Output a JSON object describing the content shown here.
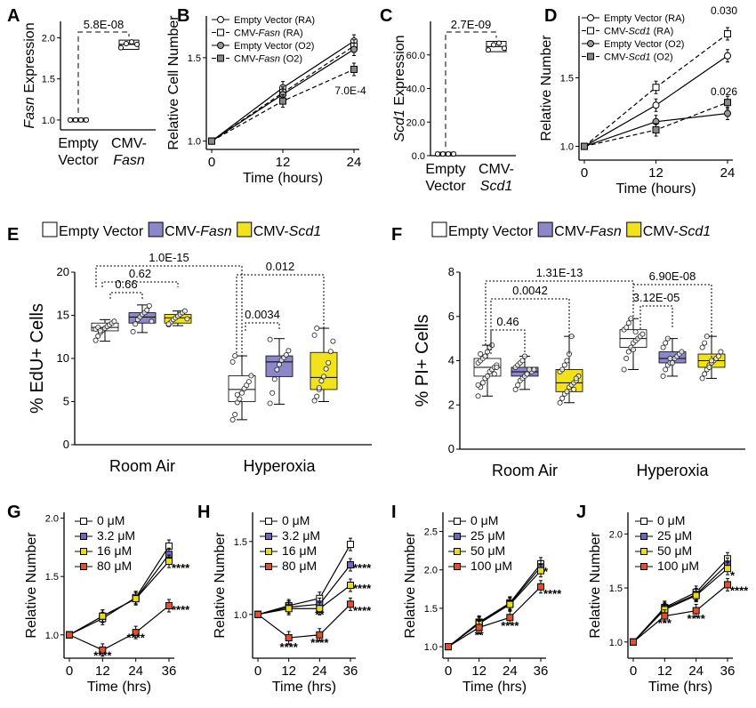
{
  "colors": {
    "empty": "#ffffff",
    "fasn": "#8b87c9",
    "scd1": "#f2e21a",
    "red": "#e2502d",
    "gray": "#888888",
    "line": "#000000"
  },
  "chart_data": [
    {
      "panel": "A",
      "type": "scatter",
      "ylabel_italic": "Fasn",
      "ylabel_rest": " Expression",
      "categories": [
        [
          "Empty",
          "Vector"
        ],
        [
          "CMV-",
          "Fasn"
        ]
      ],
      "yticks": [
        "1.0",
        "1.5",
        "2.0"
      ],
      "ylim": [
        0.88,
        2.2
      ],
      "groups": [
        {
          "name": "Empty Vector",
          "values": [
            1.0,
            1.0,
            1.0,
            1.0
          ]
        },
        {
          "name": "CMV-Fasn",
          "values": [
            1.88,
            1.93,
            1.95,
            1.92
          ]
        }
      ],
      "pvalue": "5.8E-08"
    },
    {
      "panel": "B",
      "type": "line",
      "xlabel": "Time (hours)",
      "ylabel": "Relative Cell Number",
      "x": [
        0,
        12,
        24
      ],
      "xticks": [
        "0",
        "12",
        "24"
      ],
      "yticks": [
        "1.0",
        "1.5"
      ],
      "ylim": [
        0.95,
        1.75
      ],
      "series": [
        {
          "name": "Empty Vector (RA)",
          "values": [
            1.0,
            1.32,
            1.6
          ]
        },
        {
          "name": "CMV-",
          "name_italic": "Fasn",
          "name_rest": " (RA)",
          "values": [
            1.0,
            1.29,
            1.57
          ]
        },
        {
          "name": "Empty Vector (O2)",
          "values": [
            1.0,
            1.28,
            1.55
          ]
        },
        {
          "name": "CMV-",
          "name_italic": "Fasn",
          "name_rest": " (O2)",
          "values": [
            1.0,
            1.24,
            1.43
          ]
        }
      ],
      "annotation": "7.0E-4"
    },
    {
      "panel": "C",
      "type": "scatter",
      "ylabel_italic": "Scd1",
      "ylabel_rest": " Expression",
      "categories": [
        [
          "Empty",
          "Vector"
        ],
        [
          "CMV-",
          "Scd1"
        ]
      ],
      "yticks": [
        "0.0",
        "20.0",
        "40.0",
        "60.0"
      ],
      "ylim": [
        0,
        80
      ],
      "groups": [
        {
          "name": "Empty Vector",
          "values": [
            1.0,
            1.0,
            1.0,
            1.0
          ]
        },
        {
          "name": "CMV-Scd1",
          "values": [
            63,
            66,
            67,
            64
          ]
        }
      ],
      "pvalue": "2.7E-09"
    },
    {
      "panel": "D",
      "type": "line",
      "xlabel": "Time (hours)",
      "ylabel": "Relative Number",
      "x": [
        0,
        12,
        24
      ],
      "xticks": [
        "0",
        "12",
        "24"
      ],
      "yticks": [
        "1.0",
        "1.5"
      ],
      "ylim": [
        0.9,
        1.95
      ],
      "series": [
        {
          "name": "Empty Vector (RA)",
          "values": [
            1.0,
            1.3,
            1.66
          ]
        },
        {
          "name": "CMV-",
          "name_italic": "Scd1",
          "name_rest": " (RA)",
          "values": [
            1.0,
            1.43,
            1.82
          ]
        },
        {
          "name": "Empty Vector (O2)",
          "values": [
            1.0,
            1.18,
            1.24
          ]
        },
        {
          "name": "CMV-",
          "name_italic": "Scd1",
          "name_rest": " (O2)",
          "values": [
            1.0,
            1.12,
            1.32
          ]
        }
      ],
      "annotations": [
        "0.030",
        "0.026"
      ]
    },
    {
      "panel": "E",
      "type": "box",
      "ylabel": "% EdU+ Cells",
      "legend": [
        {
          "label": "Empty Vector"
        },
        {
          "label": "CMV-",
          "italic": "Fasn"
        },
        {
          "label": "CMV-",
          "italic": "Scd1"
        }
      ],
      "groups": [
        "Room Air",
        "Hyperoxia"
      ],
      "yticks": [
        "0",
        "5",
        "10",
        "15",
        "20"
      ],
      "ylim": [
        0,
        20
      ],
      "boxes": [
        {
          "q1": 13.2,
          "median": 13.6,
          "q3": 14.1,
          "lo": 12.0,
          "hi": 14.5,
          "points": [
            12.1,
            12.6,
            13.0,
            13.3,
            13.5,
            13.7,
            13.9,
            14.1,
            14.3,
            13.4,
            13.6,
            13.2
          ]
        },
        {
          "q1": 14.1,
          "median": 14.8,
          "q3": 15.3,
          "lo": 13.0,
          "hi": 16.2,
          "points": [
            13.1,
            14.0,
            14.5,
            14.8,
            15.1,
            15.3,
            15.6,
            16.1,
            14.3
          ]
        },
        {
          "q1": 14.1,
          "median": 14.7,
          "q3": 15.1,
          "lo": 13.8,
          "hi": 15.5,
          "points": [
            13.9,
            14.2,
            14.5,
            14.7,
            14.9,
            15.1,
            15.3,
            15.5,
            14.6,
            14.0
          ]
        },
        {
          "q1": 5.0,
          "median": 6.4,
          "q3": 8.0,
          "lo": 2.9,
          "hi": 10.3,
          "points": [
            2.9,
            3.5,
            4.9,
            5.3,
            6.0,
            6.5,
            6.9,
            7.3,
            8.0,
            9.6,
            10.3,
            5.8
          ]
        },
        {
          "q1": 7.9,
          "median": 9.6,
          "q3": 10.3,
          "lo": 4.7,
          "hi": 12.3,
          "points": [
            4.8,
            6.0,
            7.6,
            8.7,
            9.3,
            9.8,
            10.1,
            10.4,
            10.9,
            12.2
          ]
        },
        {
          "q1": 6.4,
          "median": 7.8,
          "q3": 10.7,
          "lo": 5.0,
          "hi": 13.5,
          "points": [
            5.1,
            5.6,
            6.4,
            7.4,
            7.9,
            8.8,
            9.5,
            10.8,
            12.0,
            12.7,
            13.5,
            6.6
          ]
        }
      ],
      "pvalues": [
        "1.0E-15",
        "0.62",
        "0.66",
        "0.012",
        "0.0034"
      ]
    },
    {
      "panel": "F",
      "type": "box",
      "ylabel": "% PI+ Cells",
      "legend": [
        {
          "label": "Empty Vector"
        },
        {
          "label": "CMV-",
          "italic": "Fasn"
        },
        {
          "label": "CMV-",
          "italic": "Scd1"
        }
      ],
      "groups": [
        "Room Air",
        "Hyperoxia"
      ],
      "yticks": [
        "0",
        "2",
        "4",
        "6",
        "8"
      ],
      "ylim": [
        0,
        8
      ],
      "boxes": [
        {
          "q1": 3.3,
          "median": 3.7,
          "q3": 4.1,
          "lo": 2.4,
          "hi": 4.7,
          "points": [
            2.4,
            2.8,
            3.0,
            3.2,
            3.3,
            3.5,
            3.6,
            3.7,
            3.8,
            3.9,
            4.0,
            4.1,
            4.2,
            4.4,
            4.6,
            4.7,
            3.4,
            3.7,
            2.9,
            4.3
          ]
        },
        {
          "q1": 3.3,
          "median": 3.5,
          "q3": 3.7,
          "lo": 2.7,
          "hi": 4.2,
          "points": [
            2.7,
            2.9,
            3.1,
            3.2,
            3.3,
            3.4,
            3.5,
            3.5,
            3.6,
            3.7,
            3.8,
            3.9,
            4.0,
            4.2,
            3.4,
            3.6
          ]
        },
        {
          "q1": 2.6,
          "median": 3.0,
          "q3": 3.6,
          "lo": 2.1,
          "hi": 5.1,
          "points": [
            2.1,
            2.3,
            2.5,
            2.6,
            2.8,
            2.9,
            3.0,
            3.1,
            3.3,
            3.5,
            3.6,
            3.8,
            4.0,
            4.3,
            5.1,
            2.7,
            3.2
          ]
        },
        {
          "q1": 4.6,
          "median": 5.0,
          "q3": 5.4,
          "lo": 3.6,
          "hi": 5.9,
          "points": [
            3.6,
            4.1,
            4.4,
            4.6,
            4.8,
            4.9,
            5.0,
            5.1,
            5.2,
            5.4,
            5.5,
            5.7,
            5.9,
            4.5,
            5.3
          ]
        },
        {
          "q1": 3.9,
          "median": 4.1,
          "q3": 4.4,
          "lo": 3.3,
          "hi": 5.0,
          "points": [
            3.3,
            3.6,
            3.8,
            3.9,
            4.0,
            4.1,
            4.2,
            4.3,
            4.4,
            4.6,
            4.8,
            5.0,
            4.1,
            3.9
          ]
        },
        {
          "q1": 3.7,
          "median": 4.0,
          "q3": 4.3,
          "lo": 3.2,
          "hi": 5.1,
          "points": [
            3.2,
            3.4,
            3.6,
            3.8,
            3.9,
            4.0,
            4.1,
            4.2,
            4.4,
            4.6,
            4.8,
            5.1,
            3.7,
            4.0
          ]
        }
      ],
      "pvalues": [
        "1.31E-13",
        "0.0042",
        "0.46",
        "6.90E-08",
        "3.12E-05"
      ]
    },
    {
      "panel": "G",
      "type": "line",
      "xlabel": "Time (hrs)",
      "ylabel": "Relative Number",
      "x": [
        0,
        12,
        24,
        36
      ],
      "xticks": [
        "0",
        "12",
        "24",
        "36"
      ],
      "yticks": [
        "1.0",
        "1.5",
        "2.0"
      ],
      "ylim": [
        0.8,
        2.05
      ],
      "series": [
        {
          "name": "0 μM",
          "values": [
            1.0,
            1.14,
            1.32,
            1.76
          ]
        },
        {
          "name": "3.2 μM",
          "values": [
            1.0,
            1.16,
            1.31,
            1.69
          ]
        },
        {
          "name": "16 μM",
          "values": [
            1.0,
            1.16,
            1.31,
            1.63
          ]
        },
        {
          "name": "80 μM",
          "values": [
            1.0,
            0.87,
            1.02,
            1.25
          ]
        }
      ],
      "stars": [
        {
          "x": 12,
          "y": 0.79,
          "text": "****"
        },
        {
          "x": 24,
          "y": 0.94,
          "text": "****"
        },
        {
          "x": 36,
          "y": 1.54,
          "text": "****"
        },
        {
          "x": 36,
          "y": 1.18,
          "text": "****"
        }
      ]
    },
    {
      "panel": "H",
      "type": "line",
      "xlabel": "Time (hrs)",
      "ylabel": "Relative Number",
      "x": [
        0,
        12,
        24,
        36
      ],
      "xticks": [
        "0",
        "12",
        "24",
        "36"
      ],
      "yticks": [
        "1.0",
        "1.5"
      ],
      "ylim": [
        0.7,
        1.7
      ],
      "series": [
        {
          "name": "0 μM",
          "values": [
            1.0,
            1.06,
            1.11,
            1.48
          ]
        },
        {
          "name": "3.2 μM",
          "values": [
            1.0,
            1.05,
            1.07,
            1.34
          ]
        },
        {
          "name": "16 μM",
          "values": [
            1.0,
            1.04,
            1.04,
            1.2
          ]
        },
        {
          "name": "80 μM",
          "values": [
            1.0,
            0.84,
            0.86,
            1.07
          ]
        }
      ],
      "stars": [
        {
          "x": 12,
          "y": 0.75,
          "text": "****"
        },
        {
          "x": 24,
          "y": 0.78,
          "text": "****"
        },
        {
          "x": 24,
          "y": 0.97,
          "text": "**"
        },
        {
          "x": 36,
          "y": 1.29,
          "text": "****"
        },
        {
          "x": 36,
          "y": 1.15,
          "text": "****"
        },
        {
          "x": 36,
          "y": 1.0,
          "text": "****"
        }
      ]
    },
    {
      "panel": "I",
      "type": "line",
      "xlabel": "Time (hrs)",
      "ylabel": "Relative Number",
      "x": [
        0,
        12,
        24,
        36
      ],
      "xticks": [
        "0",
        "12",
        "24",
        "36"
      ],
      "yticks": [
        "1.0",
        "1.5",
        "2.0",
        "2.5"
      ],
      "ylim": [
        0.85,
        2.75
      ],
      "series": [
        {
          "name": "0 μM",
          "values": [
            1.0,
            1.32,
            1.57,
            2.08
          ]
        },
        {
          "name": "25 μM",
          "values": [
            1.0,
            1.31,
            1.56,
            2.04
          ]
        },
        {
          "name": "50 μM",
          "values": [
            1.0,
            1.3,
            1.55,
            1.99
          ]
        },
        {
          "name": "100 μM",
          "values": [
            1.0,
            1.25,
            1.38,
            1.78
          ]
        }
      ],
      "stars": [
        {
          "x": 12,
          "y": 1.1,
          "text": "**"
        },
        {
          "x": 24,
          "y": 1.22,
          "text": "****"
        },
        {
          "x": 36,
          "y": 1.93,
          "text": "*"
        },
        {
          "x": 36,
          "y": 1.64,
          "text": "****"
        }
      ]
    },
    {
      "panel": "J",
      "type": "line",
      "xlabel": "Time (hrs)",
      "ylabel": "Relative Number",
      "x": [
        0,
        12,
        24,
        36
      ],
      "xticks": [
        "0",
        "12",
        "24",
        "36"
      ],
      "yticks": [
        "1.0",
        "1.5",
        "2.0"
      ],
      "ylim": [
        0.85,
        2.2
      ],
      "series": [
        {
          "name": "0 μM",
          "values": [
            1.0,
            1.32,
            1.46,
            1.77
          ]
        },
        {
          "name": "25 μM",
          "values": [
            1.0,
            1.31,
            1.44,
            1.72
          ]
        },
        {
          "name": "50 μM",
          "values": [
            1.0,
            1.3,
            1.43,
            1.68
          ]
        },
        {
          "name": "100 μM",
          "values": [
            1.0,
            1.24,
            1.29,
            1.53
          ]
        }
      ],
      "stars": [
        {
          "x": 12,
          "y": 1.14,
          "text": "***"
        },
        {
          "x": 24,
          "y": 1.33,
          "text": "*"
        },
        {
          "x": 24,
          "y": 1.18,
          "text": "****"
        },
        {
          "x": 36,
          "y": 1.58,
          "text": "*"
        },
        {
          "x": 36,
          "y": 1.44,
          "text": "****"
        }
      ]
    }
  ]
}
